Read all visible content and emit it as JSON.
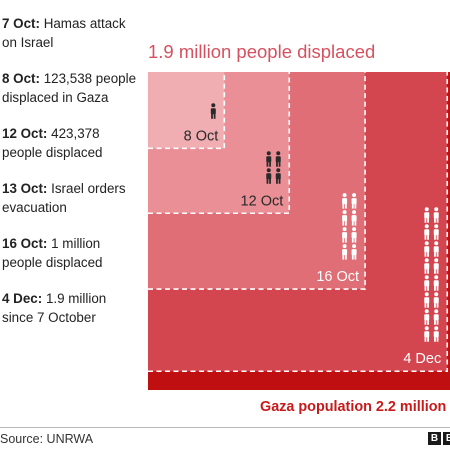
{
  "timeline": [
    {
      "date": "7 Oct:",
      "text": "Hamas attack on Israel"
    },
    {
      "date": "8 Oct:",
      "text": "123,538 people displaced in Gaza"
    },
    {
      "date": "12 Oct:",
      "text": "423,378 people displaced"
    },
    {
      "date": "13 Oct:",
      "text": "Israel orders evacuation"
    },
    {
      "date": "16 Oct:",
      "text": "1 million people displaced"
    },
    {
      "date": "4 Dec:",
      "text": "1.9 million since 7 October"
    }
  ],
  "chart_data": {
    "type": "area",
    "title": "1.9 million people displaced",
    "total_label": "Gaza population 2.2 million",
    "total_population": 2200000,
    "series": [
      {
        "label": "8 Oct",
        "value": 123538,
        "icons": 1,
        "color": "#f0aeb2"
      },
      {
        "label": "12 Oct",
        "value": 423378,
        "icons": 4,
        "color": "#ea8f95"
      },
      {
        "label": "16 Oct",
        "value": 1000000,
        "icons": 8,
        "color": "#e06e76"
      },
      {
        "label": "4 Dec",
        "value": 1900000,
        "icons": 16,
        "color": "#d3454f"
      }
    ],
    "total_color": "#c00f10"
  },
  "source": "Source: UNRWA",
  "logo": [
    "B",
    "B",
    "C"
  ]
}
